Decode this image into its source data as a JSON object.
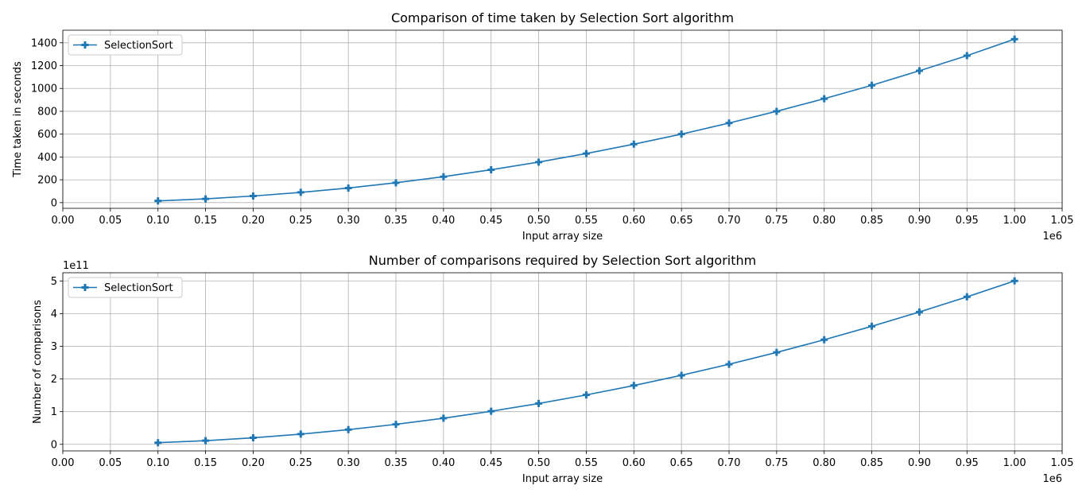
{
  "chart_data": [
    {
      "type": "line",
      "title": "Comparison of time taken by Selection Sort algorithm",
      "xlabel": "Input array size",
      "ylabel": "Time taken in seconds",
      "x_offset_text": "1e6",
      "y_offset_text": "",
      "xlim": [
        0,
        1.05
      ],
      "ylim": [
        -50,
        1510
      ],
      "x_ticks": [
        "0.00",
        "0.05",
        "0.10",
        "0.15",
        "0.20",
        "0.25",
        "0.30",
        "0.35",
        "0.40",
        "0.45",
        "0.50",
        "0.55",
        "0.60",
        "0.65",
        "0.70",
        "0.75",
        "0.80",
        "0.85",
        "0.90",
        "0.95",
        "1.00",
        "1.05"
      ],
      "y_ticks": [
        "0",
        "200",
        "400",
        "600",
        "800",
        "1000",
        "1200",
        "1400"
      ],
      "grid": true,
      "legend_position": "upper-left",
      "color": "#1f77b4",
      "series": [
        {
          "name": "SelectionSort",
          "x": [
            0.1,
            0.15,
            0.2,
            0.25,
            0.3,
            0.35,
            0.4,
            0.45,
            0.5,
            0.55,
            0.6,
            0.65,
            0.7,
            0.75,
            0.8,
            0.85,
            0.9,
            0.95,
            1.0
          ],
          "y": [
            15,
            33,
            58,
            90,
            128,
            174,
            227,
            288,
            355,
            430,
            512,
            600,
            697,
            800,
            910,
            1028,
            1155,
            1287,
            1432
          ]
        }
      ]
    },
    {
      "type": "line",
      "title": "Number of comparisons required by Selection Sort algorithm",
      "xlabel": "Input array size",
      "ylabel": "Number of comparisons",
      "x_offset_text": "1e6",
      "y_offset_text": "1e11",
      "xlim": [
        0,
        1.05
      ],
      "ylim": [
        -0.2,
        5.25
      ],
      "x_ticks": [
        "0.00",
        "0.05",
        "0.10",
        "0.15",
        "0.20",
        "0.25",
        "0.30",
        "0.35",
        "0.40",
        "0.45",
        "0.50",
        "0.55",
        "0.60",
        "0.65",
        "0.70",
        "0.75",
        "0.80",
        "0.85",
        "0.90",
        "0.95",
        "1.00",
        "1.05"
      ],
      "y_ticks": [
        "0",
        "1",
        "2",
        "3",
        "4",
        "5"
      ],
      "grid": true,
      "legend_position": "upper-left",
      "color": "#1f77b4",
      "series": [
        {
          "name": "SelectionSort",
          "x": [
            0.1,
            0.15,
            0.2,
            0.25,
            0.3,
            0.35,
            0.4,
            0.45,
            0.5,
            0.55,
            0.6,
            0.65,
            0.7,
            0.75,
            0.8,
            0.85,
            0.9,
            0.95,
            1.0
          ],
          "y": [
            0.05,
            0.1125,
            0.2,
            0.3125,
            0.45,
            0.6125,
            0.8,
            1.0125,
            1.25,
            1.5125,
            1.8,
            2.1125,
            2.45,
            2.8125,
            3.2,
            3.6125,
            4.05,
            4.5125,
            5.0
          ]
        }
      ]
    }
  ]
}
